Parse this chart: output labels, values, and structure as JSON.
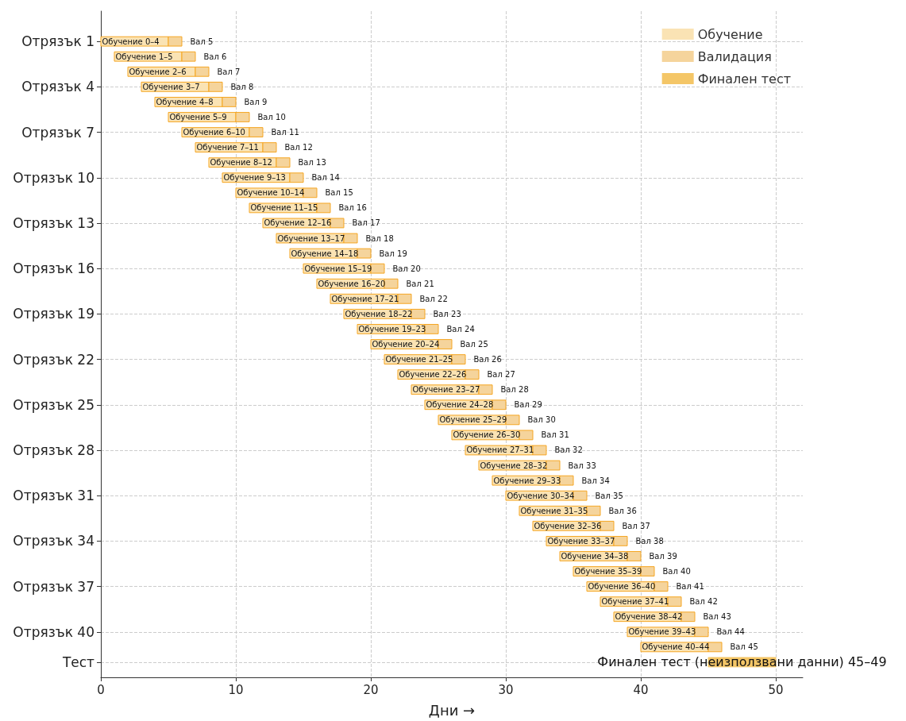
{
  "chart_data": {
    "type": "bar",
    "orientation": "horizontal",
    "xlabel": "Дни →",
    "categories": [
      "Отрязък 1",
      null,
      null,
      "Отрязък 4",
      null,
      null,
      "Отрязък 7",
      null,
      null,
      "Отрязък 10",
      null,
      null,
      "Отрязък 13",
      null,
      null,
      "Отрязък 16",
      null,
      null,
      "Отрязък 19",
      null,
      null,
      "Отрязък 22",
      null,
      null,
      "Отрязък 25",
      null,
      null,
      "Отрязък 28",
      null,
      null,
      "Отрязък 31",
      null,
      null,
      "Отрязък 34",
      null,
      null,
      "Отрязък 37",
      null,
      null,
      "Отрязък 40",
      null,
      "Тест"
    ],
    "xlim": [
      0,
      52
    ],
    "xticks": [
      0,
      10,
      20,
      30,
      40,
      50
    ],
    "grid": true,
    "legend": "top right",
    "series": [
      {
        "name": "Обучение",
        "color": "#fae3b4",
        "base": [
          0,
          1,
          2,
          3,
          4,
          5,
          6,
          7,
          8,
          9,
          10,
          11,
          12,
          13,
          14,
          15,
          16,
          17,
          18,
          19,
          20,
          21,
          22,
          23,
          24,
          25,
          26,
          27,
          28,
          29,
          30,
          31,
          32,
          33,
          34,
          35,
          36,
          37,
          38,
          39,
          40,
          null
        ],
        "values": [
          5,
          5,
          5,
          5,
          5,
          5,
          5,
          5,
          5,
          5,
          5,
          5,
          5,
          5,
          5,
          5,
          5,
          5,
          5,
          5,
          5,
          5,
          5,
          5,
          5,
          5,
          5,
          5,
          5,
          5,
          5,
          5,
          5,
          5,
          5,
          5,
          5,
          5,
          5,
          5,
          5,
          null
        ],
        "value_labels": [
          "Обучение 0–4",
          "Обучение 1–5",
          "Обучение 2–6",
          "Обучение 3–7",
          "Обучение 4–8",
          "Обучение 5–9",
          "Обучение 6–10",
          "Обучение 7–11",
          "Обучение 8–12",
          "Обучение 9–13",
          "Обучение 10–14",
          "Обучение 11–15",
          "Обучение 12–16",
          "Обучение 13–17",
          "Обучение 14–18",
          "Обучение 15–19",
          "Обучение 16–20",
          "Обучение 17–21",
          "Обучение 18–22",
          "Обучение 19–23",
          "Обучение 20–24",
          "Обучение 21–25",
          "Обучение 22–26",
          "Обучение 23–27",
          "Обучение 24–28",
          "Обучение 25–29",
          "Обучение 26–30",
          "Обучение 27–31",
          "Обучение 28–32",
          "Обучение 29–33",
          "Обучение 30–34",
          "Обучение 31–35",
          "Обучение 32–36",
          "Обучение 33–37",
          "Обучение 34–38",
          "Обучение 35–39",
          "Обучение 36–40",
          "Обучение 37–41",
          "Обучение 38–42",
          "Обучение 39–43",
          "Обучение 40–44",
          null
        ]
      },
      {
        "name": "Валидация",
        "color": "#f5d49c",
        "base": [
          5,
          6,
          7,
          8,
          9,
          10,
          11,
          12,
          13,
          14,
          15,
          16,
          17,
          18,
          19,
          20,
          21,
          22,
          23,
          24,
          25,
          26,
          27,
          28,
          29,
          30,
          31,
          32,
          33,
          34,
          35,
          36,
          37,
          38,
          39,
          40,
          41,
          42,
          43,
          44,
          45,
          null
        ],
        "values": [
          1,
          1,
          1,
          1,
          1,
          1,
          1,
          1,
          1,
          1,
          1,
          1,
          1,
          1,
          1,
          1,
          1,
          1,
          1,
          1,
          1,
          1,
          1,
          1,
          1,
          1,
          1,
          1,
          1,
          1,
          1,
          1,
          1,
          1,
          1,
          1,
          1,
          1,
          1,
          1,
          1,
          null
        ],
        "value_labels": [
          "Вал 5",
          "Вал 6",
          "Вал 7",
          "Вал 8",
          "Вал 9",
          "Вал 10",
          "Вал 11",
          "Вал 12",
          "Вал 13",
          "Вал 14",
          "Вал 15",
          "Вал 16",
          "Вал 17",
          "Вал 18",
          "Вал 19",
          "Вал 20",
          "Вал 21",
          "Вал 22",
          "Вал 23",
          "Вал 24",
          "Вал 25",
          "Вал 26",
          "Вал 27",
          "Вал 28",
          "Вал 29",
          "Вал 30",
          "Вал 31",
          "Вал 32",
          "Вал 33",
          "Вал 34",
          "Вал 35",
          "Вал 36",
          "Вал 37",
          "Вал 38",
          "Вал 39",
          "Вал 40",
          "Вал 41",
          "Вал 42",
          "Вал 43",
          "Вал 44",
          "Вал 45",
          null
        ]
      },
      {
        "name": "Финален тест",
        "color": "#f4c667",
        "base": [
          null,
          null,
          null,
          null,
          null,
          null,
          null,
          null,
          null,
          null,
          null,
          null,
          null,
          null,
          null,
          null,
          null,
          null,
          null,
          null,
          null,
          null,
          null,
          null,
          null,
          null,
          null,
          null,
          null,
          null,
          null,
          null,
          null,
          null,
          null,
          null,
          null,
          null,
          null,
          null,
          null,
          45
        ],
        "values": [
          null,
          null,
          null,
          null,
          null,
          null,
          null,
          null,
          null,
          null,
          null,
          null,
          null,
          null,
          null,
          null,
          null,
          null,
          null,
          null,
          null,
          null,
          null,
          null,
          null,
          null,
          null,
          null,
          null,
          null,
          null,
          null,
          null,
          null,
          null,
          null,
          null,
          null,
          null,
          null,
          null,
          5
        ],
        "value_labels": [
          null,
          null,
          null,
          null,
          null,
          null,
          null,
          null,
          null,
          null,
          null,
          null,
          null,
          null,
          null,
          null,
          null,
          null,
          null,
          null,
          null,
          null,
          null,
          null,
          null,
          null,
          null,
          null,
          null,
          null,
          null,
          null,
          null,
          null,
          null,
          null,
          null,
          null,
          null,
          null,
          null,
          "Финален тест (неизползвани данни) 45–49"
        ]
      }
    ]
  }
}
